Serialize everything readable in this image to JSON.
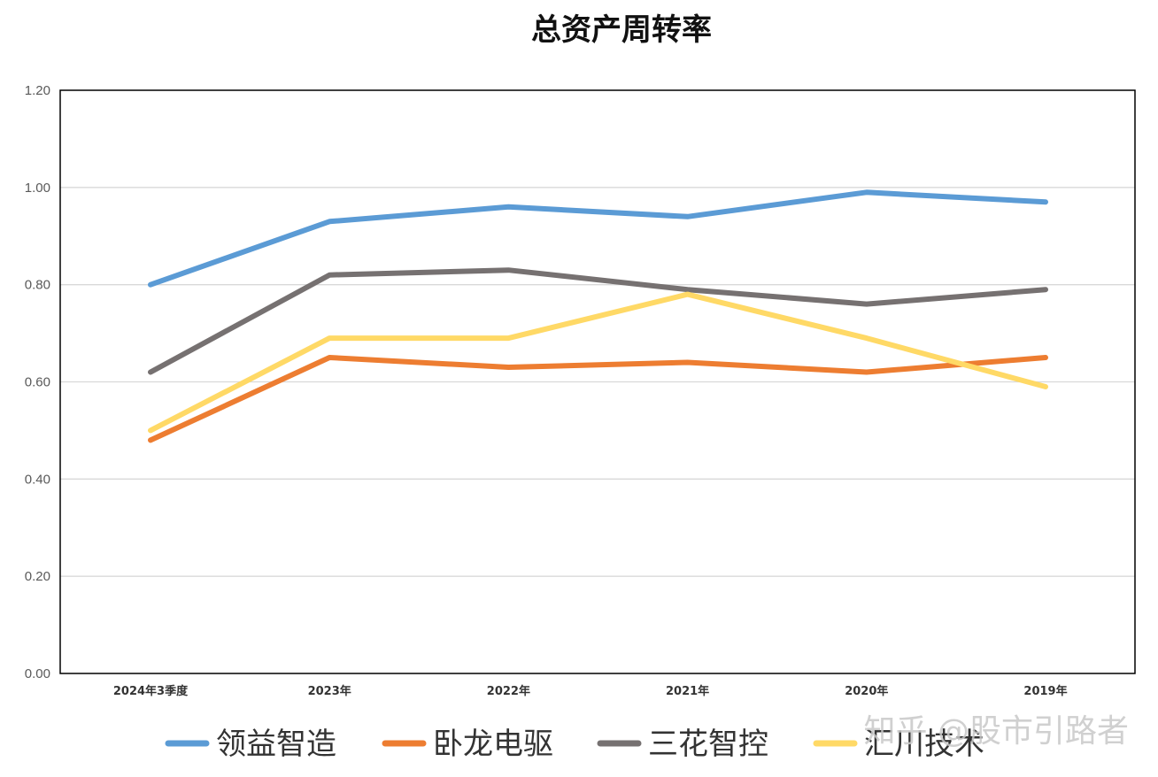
{
  "chart_data": {
    "type": "line",
    "title": "总资产周转率",
    "categories": [
      "2024年3季度",
      "2023年",
      "2022年",
      "2021年",
      "2020年",
      "2019年"
    ],
    "ylim": [
      0,
      1.2
    ],
    "yticks": [
      "0.00",
      "0.20",
      "0.40",
      "0.60",
      "0.80",
      "1.00",
      "1.20"
    ],
    "grid": true,
    "legend_position": "bottom",
    "series": [
      {
        "name": "领益智造",
        "color": "#5B9BD5",
        "values": [
          0.8,
          0.93,
          0.96,
          0.94,
          0.99,
          0.97
        ]
      },
      {
        "name": "卧龙电驱",
        "color": "#ED7D31",
        "values": [
          0.48,
          0.65,
          0.63,
          0.64,
          0.62,
          0.65
        ]
      },
      {
        "name": "三花智控",
        "color": "#767171",
        "values": [
          0.62,
          0.82,
          0.83,
          0.79,
          0.76,
          0.79
        ]
      },
      {
        "name": "汇川技术",
        "color": "#FFD966",
        "values": [
          0.5,
          0.69,
          0.69,
          0.78,
          0.69,
          0.59
        ]
      }
    ]
  },
  "watermark": "知乎 @股市引路者"
}
